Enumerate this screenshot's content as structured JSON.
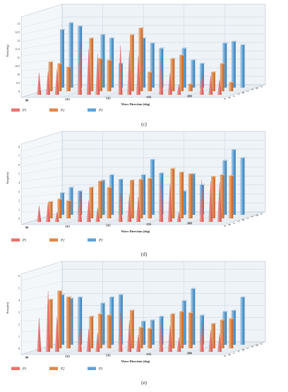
{
  "legend": [
    {
      "label": "P1",
      "color": "#e8746f"
    },
    {
      "label": "P2",
      "color": "#e0874a"
    },
    {
      "label": "P3",
      "color": "#5ea3d8"
    }
  ],
  "chart_data": [
    {
      "type": "bar",
      "panel_label": "(c)",
      "ylabel": "Yaw(deg)",
      "xlabel": "Wave Direction (deg)",
      "categories": [
        "90",
        "115",
        "135",
        "155",
        "180"
      ],
      "sublabels": [
        "A",
        "B",
        "C"
      ],
      "yticks": [
        9.0,
        9.5,
        10,
        10.5,
        11,
        11.5,
        12,
        12.5,
        13
      ],
      "ylim": [
        9.0,
        13.5
      ],
      "series": [
        {
          "name": "P1",
          "values": [
            [
              10.3,
              10.4,
              10.5
            ],
            [
              12.1,
              11.7,
              11.4
            ],
            [
              11.9,
              11.6,
              11.3
            ],
            [
              11.2,
              10.3,
              9.6
            ],
            [
              10.3,
              10.1,
              9.9
            ]
          ]
        },
        {
          "name": "P2",
          "values": [
            [
              10.7,
              10.6,
              10.4
            ],
            [
              12.1,
              10.9,
              10.8
            ],
            [
              12.3,
              12.7,
              10.1
            ],
            [
              10.9,
              11.1,
              9.4
            ],
            [
              10.1,
              10.6,
              9.5
            ]
          ]
        },
        {
          "name": "P3",
          "values": [
            [
              12.4,
              12.8,
              12.6
            ],
            [
              12.1,
              11.9,
              10.4
            ],
            [
              11.9,
              11.6,
              11.3
            ],
            [
              11.3,
              10.6,
              10.4
            ],
            [
              11.6,
              11.7,
              11.5
            ]
          ]
        }
      ]
    },
    {
      "type": "bar",
      "panel_label": "(d)",
      "ylabel": "Surge(m)",
      "xlabel": "Wave Direction (deg)",
      "categories": [
        "90",
        "115",
        "135",
        "155",
        "180"
      ],
      "sublabels": [
        "A",
        "B",
        "C"
      ],
      "yticks": [
        0,
        1,
        2,
        3,
        4,
        5,
        6,
        7,
        8
      ],
      "ylim": [
        0,
        8.5
      ],
      "series": [
        {
          "name": "P1",
          "values": [
            [
              1.8,
              2.2,
              1.1
            ],
            [
              3.4,
              2.4,
              1.6
            ],
            [
              3.2,
              3.1,
              2.8
            ],
            [
              5.0,
              4.3,
              1.1
            ],
            [
              4.7,
              4.5,
              4.4
            ]
          ]
        },
        {
          "name": "P2",
          "values": [
            [
              1.8,
              2.1,
              1.9
            ],
            [
              3.4,
              4.1,
              3.4
            ],
            [
              4.2,
              4.3,
              4.4
            ],
            [
              5.5,
              5.1,
              4.9
            ],
            [
              4.6,
              4.8,
              4.7
            ]
          ]
        },
        {
          "name": "P3",
          "values": [
            [
              2.4,
              3.0,
              2.6
            ],
            [
              3.8,
              4.4,
              3.9
            ],
            [
              4.4,
              6.1,
              4.6
            ],
            [
              2.6,
              4.5,
              3.3
            ],
            [
              6.0,
              7.2,
              6.3
            ]
          ]
        }
      ]
    },
    {
      "type": "bar",
      "panel_label": "(e)",
      "ylabel": "Sway(m)",
      "xlabel": "Wave Direction (deg)",
      "categories": [
        "90",
        "115",
        "135",
        "155",
        "180"
      ],
      "sublabels": [
        "A",
        "B",
        "C"
      ],
      "yticks": [
        0,
        1,
        2,
        3,
        4,
        5,
        6
      ],
      "ylim": [
        0,
        6.3
      ],
      "series": [
        {
          "name": "P1",
          "values": [
            [
              2.8,
              5.0,
              2.9
            ],
            [
              2.1,
              1.9,
              1.6
            ],
            [
              3.2,
              2.6,
              1.4
            ],
            [
              2.7,
              2.2,
              1.2
            ],
            [
              2.5,
              1.8,
              1.5
            ]
          ]
        },
        {
          "name": "P2",
          "values": [
            [
              4.0,
              4.7,
              4.2
            ],
            [
              2.6,
              2.8,
              2.7
            ],
            [
              3.1,
              1.7,
              1.6
            ],
            [
              2.8,
              3.0,
              2.9
            ],
            [
              2.0,
              2.3,
              2.4
            ]
          ]
        },
        {
          "name": "P3",
          "values": [
            [
              4.1,
              3.8,
              3.9
            ],
            [
              3.4,
              3.9,
              4.1
            ],
            [
              1.9,
              2.0,
              2.3
            ],
            [
              3.6,
              4.6,
              2.4
            ],
            [
              2.7,
              2.8,
              3.9
            ]
          ]
        }
      ]
    }
  ]
}
